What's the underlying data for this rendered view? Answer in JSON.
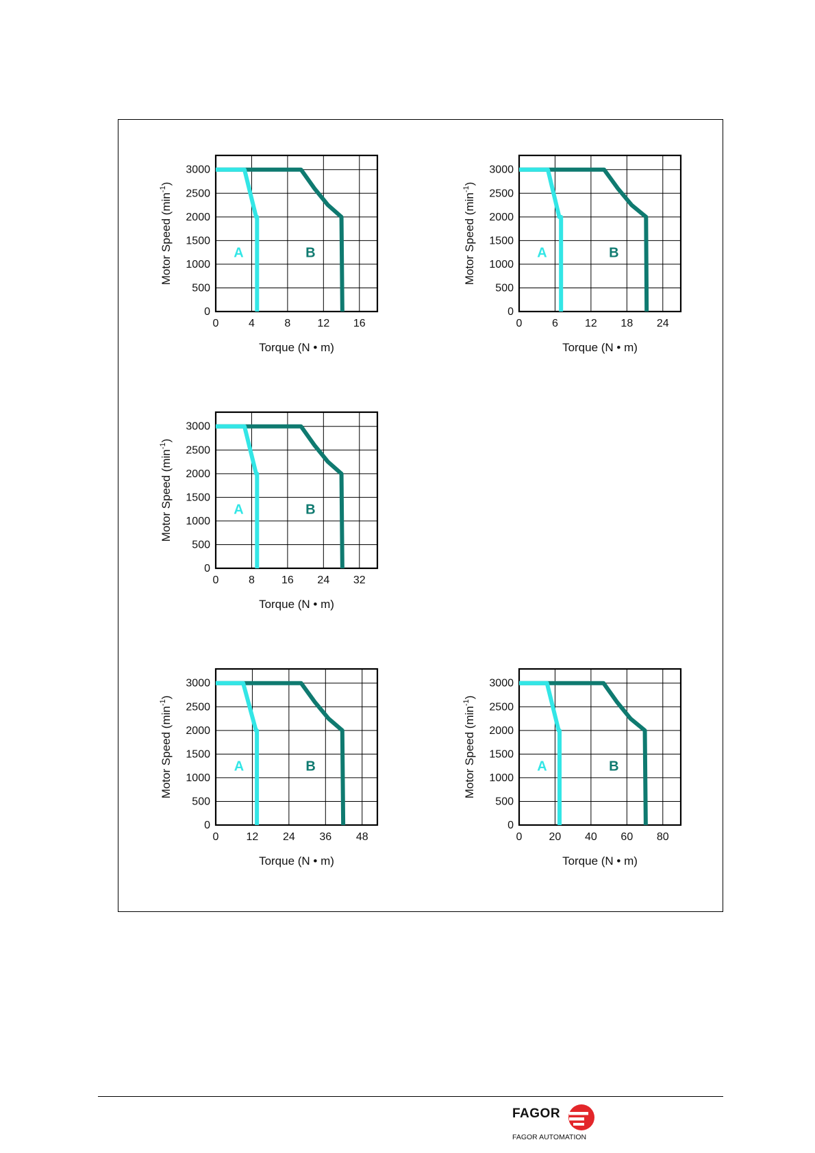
{
  "chart_data": [
    {
      "type": "line",
      "xlabel": "Torque (N • m)",
      "ylabel": "Motor  Speed (min-1)",
      "xticks": [
        0,
        4,
        8,
        12,
        16
      ],
      "yticks": [
        0,
        500,
        1000,
        1500,
        2000,
        2500,
        3000
      ],
      "xlim": [
        0,
        18
      ],
      "ylim": [
        0,
        3300
      ],
      "series": [
        {
          "name": "A",
          "color": "#33e6e6",
          "x": [
            0,
            3.2,
            4.5,
            4.6,
            4.6
          ],
          "y": [
            3000,
            3000,
            2000,
            2000,
            0
          ]
        },
        {
          "name": "B",
          "color": "#0f7a70",
          "x": [
            0,
            9.5,
            11.0,
            12.5,
            14.0,
            14.1
          ],
          "y": [
            3000,
            3000,
            2600,
            2250,
            2000,
            0
          ]
        }
      ],
      "labels": [
        {
          "text": "A",
          "x": 2,
          "y": 1250
        },
        {
          "text": "B",
          "x": 10,
          "y": 1250
        }
      ]
    },
    {
      "type": "line",
      "xlabel": "Torque (N • m)",
      "ylabel": "Motor  Speed (min-1)",
      "xticks": [
        0,
        6,
        12,
        18,
        24
      ],
      "yticks": [
        0,
        500,
        1000,
        1500,
        2000,
        2500,
        3000
      ],
      "xlim": [
        0,
        27
      ],
      "ylim": [
        0,
        3300
      ],
      "series": [
        {
          "name": "A",
          "color": "#33e6e6",
          "x": [
            0,
            4.8,
            6.7,
            7.0,
            7.0
          ],
          "y": [
            3000,
            3000,
            2000,
            2000,
            0
          ]
        },
        {
          "name": "B",
          "color": "#0f7a70",
          "x": [
            0,
            14.2,
            16.5,
            18.8,
            21.2,
            21.3
          ],
          "y": [
            3000,
            3000,
            2600,
            2250,
            2000,
            0
          ]
        }
      ],
      "labels": [
        {
          "text": "A",
          "x": 3,
          "y": 1250
        },
        {
          "text": "B",
          "x": 15,
          "y": 1250
        }
      ]
    },
    {
      "type": "line",
      "xlabel": "Torque (N • m)",
      "ylabel": "Motor  Speed (min-1)",
      "xticks": [
        0,
        8,
        16,
        24,
        32
      ],
      "yticks": [
        0,
        500,
        1000,
        1500,
        2000,
        2500,
        3000
      ],
      "xlim": [
        0,
        36
      ],
      "ylim": [
        0,
        3300
      ],
      "series": [
        {
          "name": "A",
          "color": "#33e6e6",
          "x": [
            0,
            6.4,
            9.0,
            9.2,
            9.2
          ],
          "y": [
            3000,
            3000,
            2000,
            2000,
            0
          ]
        },
        {
          "name": "B",
          "color": "#0f7a70",
          "x": [
            0,
            19.0,
            22.0,
            25.0,
            28.0,
            28.2
          ],
          "y": [
            3000,
            3000,
            2600,
            2250,
            2000,
            0
          ]
        }
      ],
      "labels": [
        {
          "text": "A",
          "x": 4,
          "y": 1250
        },
        {
          "text": "B",
          "x": 20,
          "y": 1250
        }
      ]
    },
    {
      "type": "line",
      "xlabel": "Torque (N • m)",
      "ylabel": "Motor  Speed (min-1)",
      "xticks": [
        0,
        12,
        24,
        36,
        48
      ],
      "yticks": [
        0,
        500,
        1000,
        1500,
        2000,
        2500,
        3000
      ],
      "xlim": [
        0,
        53
      ],
      "ylim": [
        0,
        3300
      ],
      "series": [
        {
          "name": "A",
          "color": "#33e6e6",
          "x": [
            0,
            9.0,
            13.2,
            13.5,
            13.5
          ],
          "y": [
            3000,
            3000,
            2000,
            2000,
            0
          ]
        },
        {
          "name": "B",
          "color": "#0f7a70",
          "x": [
            0,
            28.0,
            32.5,
            37.0,
            41.5,
            41.8
          ],
          "y": [
            3000,
            3000,
            2600,
            2250,
            2000,
            0
          ]
        }
      ],
      "labels": [
        {
          "text": "A",
          "x": 6,
          "y": 1250
        },
        {
          "text": "B",
          "x": 29.5,
          "y": 1250
        }
      ]
    },
    {
      "type": "line",
      "xlabel": "Torque (N • m)",
      "ylabel": "Motor  Speed (min-1)",
      "xticks": [
        0,
        20,
        40,
        60,
        80
      ],
      "yticks": [
        0,
        500,
        1000,
        1500,
        2000,
        2500,
        3000
      ],
      "xlim": [
        0,
        90
      ],
      "ylim": [
        0,
        3300
      ],
      "series": [
        {
          "name": "A",
          "color": "#33e6e6",
          "x": [
            0,
            15.5,
            22.0,
            22.5,
            22.5
          ],
          "y": [
            3000,
            3000,
            2000,
            2000,
            0
          ]
        },
        {
          "name": "B",
          "color": "#0f7a70",
          "x": [
            0,
            47.0,
            54.5,
            62.0,
            70.0,
            70.5
          ],
          "y": [
            3000,
            3000,
            2600,
            2250,
            2000,
            0
          ]
        }
      ],
      "labels": [
        {
          "text": "A",
          "x": 10,
          "y": 1250
        },
        {
          "text": "B",
          "x": 50,
          "y": 1250
        }
      ]
    }
  ],
  "footer": {
    "brand": "FAGOR",
    "sub": "FAGOR AUTOMATION",
    "logo_color": "#e3262a"
  }
}
